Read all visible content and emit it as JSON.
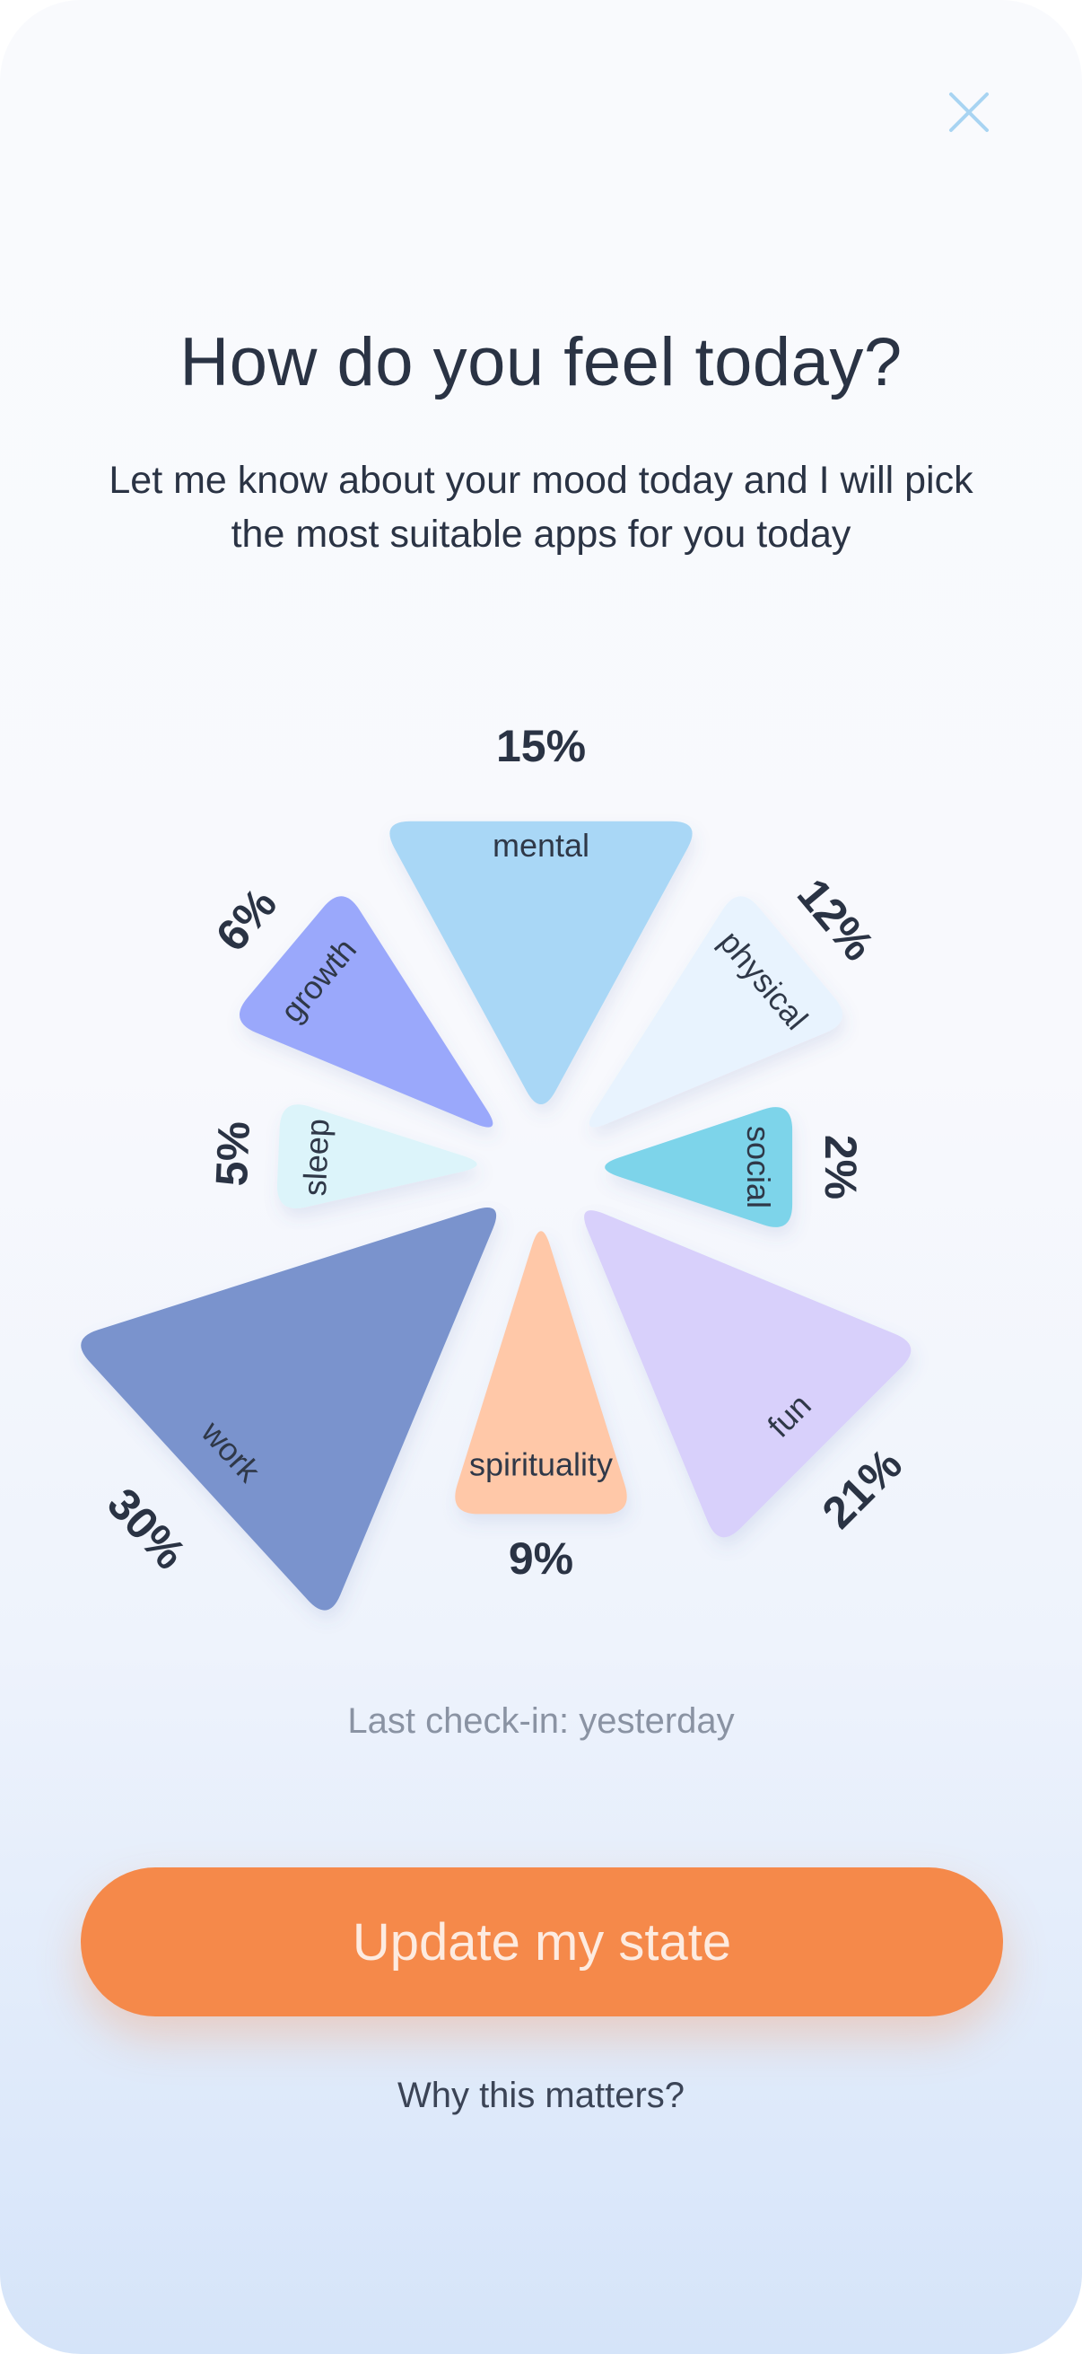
{
  "header": {
    "title": "How do you feel today?",
    "subtitle": "Let me know about your mood today and I will pick the most suitable apps for you today",
    "close_icon": "close-icon"
  },
  "mood_wheel": {
    "segments": [
      {
        "id": "mental",
        "label": "mental",
        "percent_label": "15%",
        "percent": 15,
        "color": "#a9d7f6"
      },
      {
        "id": "physical",
        "label": "physical",
        "percent_label": "12%",
        "percent": 12,
        "color": "#e8f3fe"
      },
      {
        "id": "social",
        "label": "social",
        "percent_label": "2%",
        "percent": 2,
        "color": "#7dd4ea"
      },
      {
        "id": "fun",
        "label": "fun",
        "percent_label": "21%",
        "percent": 21,
        "color": "#d8d0fb"
      },
      {
        "id": "spirituality",
        "label": "spirituality",
        "percent_label": "9%",
        "percent": 9,
        "color": "#ffc8a8"
      },
      {
        "id": "work",
        "label": "work",
        "percent_label": "30%",
        "percent": 30,
        "color": "#7a93cd"
      },
      {
        "id": "sleep",
        "label": "sleep",
        "percent_label": "5%",
        "percent": 5,
        "color": "#dcf4fa"
      },
      {
        "id": "growth",
        "label": "growth",
        "percent_label": "6%",
        "percent": 6,
        "color": "#9aa8fb"
      }
    ]
  },
  "status": {
    "last_checkin": "Last check-in: yesterday"
  },
  "actions": {
    "update_label": "Update my state",
    "why_label": "Why this matters?"
  },
  "colors": {
    "accent": "#f5894a",
    "text_dark": "#2a3344",
    "text_muted": "#8a93a3",
    "close_icon": "#a8d4f2"
  }
}
